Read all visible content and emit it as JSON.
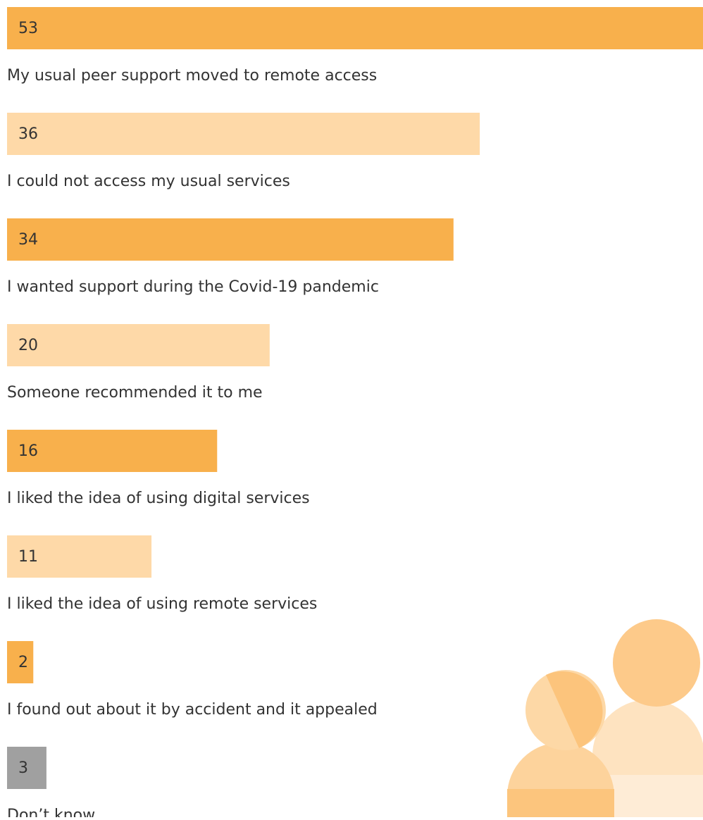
{
  "chart_data": {
    "type": "bar",
    "categories": [
      "My usual peer support moved to remote access",
      "I could not access my usual services",
      "I wanted support during the Covid-19 pandemic",
      "Someone recommended it to me",
      "I liked the idea of using digital services",
      "I liked the idea of using remote services",
      "I found out about it by accident and it appealed",
      "Don’t know"
    ],
    "values": [
      53,
      36,
      34,
      20,
      16,
      11,
      2,
      3
    ],
    "colors": [
      "#f8b04c",
      "#fed9a8",
      "#f8b04c",
      "#fed9a8",
      "#f8b04c",
      "#fed9a8",
      "#f8b04c",
      "#a0a0a0"
    ],
    "xlim": [
      0,
      53
    ]
  }
}
